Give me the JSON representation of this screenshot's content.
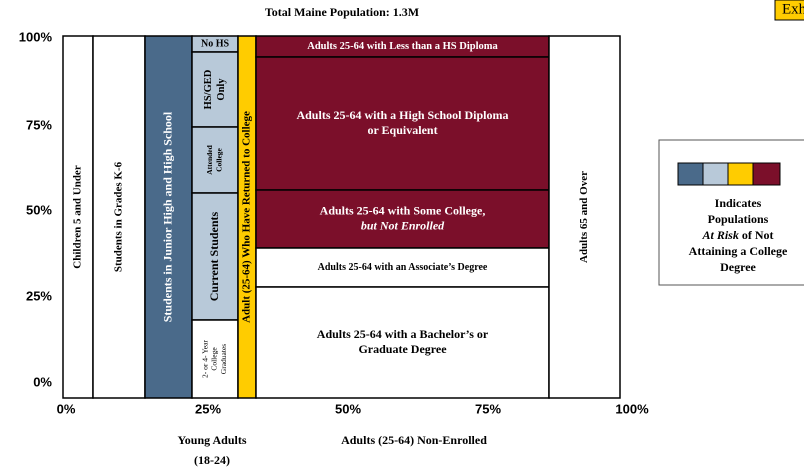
{
  "title": "Total Maine Population: 1.3M",
  "corner_label": "Exhi",
  "y_ticks": [
    "100%",
    "75%",
    "50%",
    "25%",
    "0%"
  ],
  "x_ticks": [
    "0%",
    "25%",
    "50%",
    "75%",
    "100%"
  ],
  "x_groups": [
    {
      "lines": [
        "Young Adults",
        "(18-24)"
      ]
    },
    {
      "lines": [
        "Adults (25-64) Non-Enrolled"
      ]
    }
  ],
  "regions": [
    {
      "lines": [
        "Children 5 and Under"
      ]
    },
    {
      "lines": [
        "Students in Grades K-6"
      ]
    },
    {
      "lines": [
        "Students in Junior High and High School"
      ]
    },
    {
      "lines": [
        "No HS"
      ]
    },
    {
      "lines": [
        "HS/GED",
        "Only"
      ]
    },
    {
      "lines": [
        "Attended",
        "College"
      ]
    },
    {
      "lines": [
        "Current Students"
      ]
    },
    {
      "lines": [
        "2- or 4- Year",
        "College",
        "Graduates"
      ]
    },
    {
      "lines": [
        "Adult (25-64) Who Have Returned to College"
      ]
    },
    {
      "lines": [
        "Adults 25-64 with Less than a HS Diploma"
      ]
    },
    {
      "lines": [
        "Adults 25-64 with a High School Diploma",
        "or Equivalent"
      ]
    },
    {
      "lines": [
        "Adults 25-64 with Some College,",
        "but Not Enrolled"
      ]
    },
    {
      "lines": [
        "Adults 25-64 with an Associate’s Degree"
      ]
    },
    {
      "lines": [
        "Adults 25-64 with a Bachelor’s or",
        "Graduate Degree"
      ]
    },
    {
      "lines": [
        "Adults 65 and Over"
      ]
    }
  ],
  "legend": {
    "lines": [
      [
        "Indicates"
      ],
      [
        "Populations"
      ],
      [
        "At Risk",
        " of Not"
      ],
      [
        "Attaining a College"
      ],
      [
        "Degree"
      ]
    ]
  }
}
